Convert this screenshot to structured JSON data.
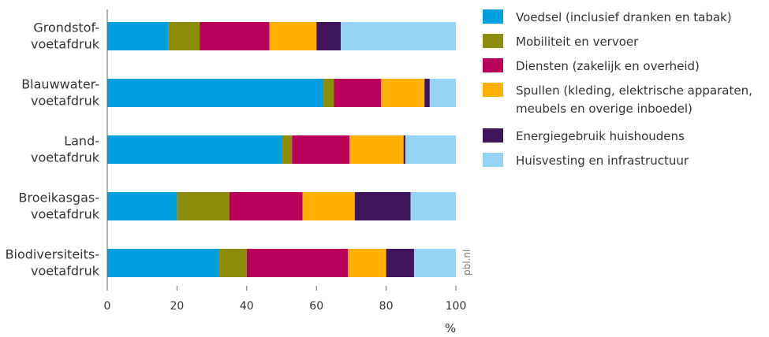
{
  "chart_data": {
    "type": "bar",
    "orientation": "horizontal",
    "stacked": true,
    "categories": [
      [
        "Grondstof-",
        "voetafdruk"
      ],
      [
        "Blauwwater-",
        "voetafdruk"
      ],
      [
        "Land-",
        "voetafdruk"
      ],
      [
        "Broeikasgas-",
        "voetafdruk"
      ],
      [
        "Biodiversiteits-",
        "voetafdruk"
      ]
    ],
    "series": [
      {
        "name": "Voedsel (inclusief dranken en tabak)",
        "color": "#009fe0",
        "values": [
          17.5,
          62,
          50,
          20,
          32
        ]
      },
      {
        "name": "Mobiliteit en vervoer",
        "color": "#8c8d0b",
        "values": [
          9,
          3,
          3,
          15,
          8
        ]
      },
      {
        "name": "Diensten (zakelijk en overheid)",
        "color": "#b9005a",
        "values": [
          20,
          13.5,
          16.5,
          21,
          29
        ]
      },
      {
        "name": [
          "Spullen (kleding, elektrische apparaten,",
          "meubels en overige inboedel)"
        ],
        "color": "#ffb000",
        "values": [
          13.5,
          12.5,
          15.5,
          15,
          11
        ]
      },
      {
        "name": "Energiegebruik huishoudens",
        "color": "#3e1659",
        "values": [
          7,
          1.5,
          0.5,
          16,
          8
        ]
      },
      {
        "name": "Huisvesting en infrastructuur",
        "color": "#95d3f3",
        "values": [
          33,
          7.5,
          14.5,
          13,
          12
        ]
      }
    ],
    "xlim": [
      0,
      100
    ],
    "xticks": [
      0,
      20,
      40,
      60,
      80,
      100
    ],
    "xunit": "%",
    "credit": "pbl.nl",
    "grid": false,
    "legend_position": "right"
  }
}
